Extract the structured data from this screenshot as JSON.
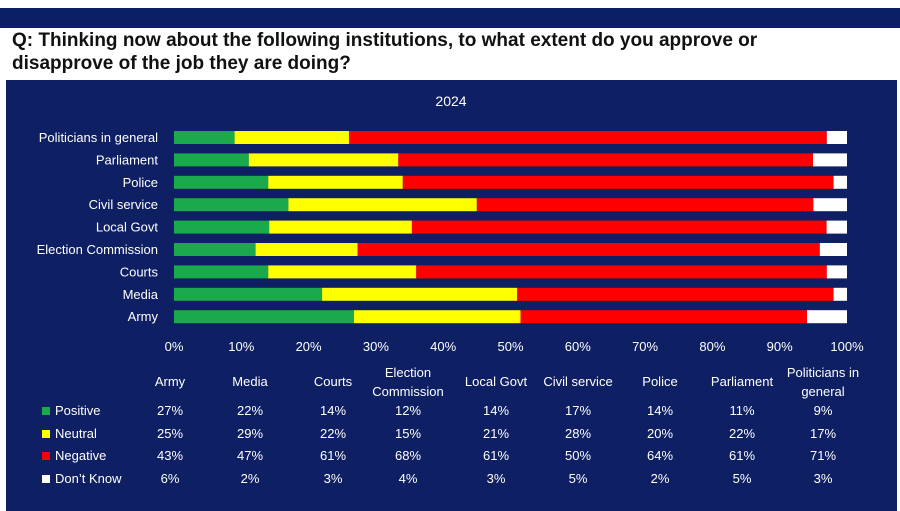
{
  "question": {
    "line1": "Q: Thinking now about the following institutions, to what extent do you approve or",
    "line2": "disapprove of the job they are doing?"
  },
  "colors": {
    "background": "#0e1f63",
    "positive": "#1aaa4c",
    "neutral": "#ffff00",
    "negative": "#ff0000",
    "dont_know": "#ffffff"
  },
  "chart_data": {
    "type": "bar",
    "orientation": "horizontal-stacked-100",
    "title": "2024",
    "xlim": [
      0,
      100
    ],
    "x_ticks": [
      "0%",
      "10%",
      "20%",
      "30%",
      "40%",
      "50%",
      "60%",
      "70%",
      "80%",
      "90%",
      "100%"
    ],
    "categories": [
      "Politicians in general",
      "Parliament",
      "Police",
      "Civil service",
      "Local Govt",
      "Election Commission",
      "Courts",
      "Media",
      "Army"
    ],
    "series": [
      {
        "name": "Positive",
        "values": [
          9,
          11,
          14,
          17,
          14,
          12,
          14,
          22,
          27
        ]
      },
      {
        "name": "Neutral",
        "values": [
          17,
          22,
          20,
          28,
          21,
          15,
          22,
          29,
          25
        ]
      },
      {
        "name": "Negative",
        "values": [
          71,
          61,
          64,
          50,
          61,
          68,
          61,
          47,
          43
        ]
      },
      {
        "name": "Don’t Know",
        "values": [
          3,
          5,
          2,
          5,
          3,
          4,
          3,
          2,
          6
        ]
      }
    ],
    "legend": "table-below"
  },
  "table": {
    "columns": [
      {
        "l1": "Army"
      },
      {
        "l1": "Media"
      },
      {
        "l1": "Courts"
      },
      {
        "l1": "Election",
        "l2": "Commission"
      },
      {
        "l1": "Local Govt"
      },
      {
        "l1": "Civil service"
      },
      {
        "l1": "Police"
      },
      {
        "l1": "Parliament"
      },
      {
        "l1": "Politicians in",
        "l2": "general"
      }
    ],
    "rows": [
      {
        "label": "Positive",
        "values": [
          "27%",
          "22%",
          "14%",
          "12%",
          "14%",
          "17%",
          "14%",
          "11%",
          "9%"
        ]
      },
      {
        "label": "Neutral",
        "values": [
          "25%",
          "29%",
          "22%",
          "15%",
          "21%",
          "28%",
          "20%",
          "22%",
          "17%"
        ]
      },
      {
        "label": "Negative",
        "values": [
          "43%",
          "47%",
          "61%",
          "68%",
          "61%",
          "50%",
          "64%",
          "61%",
          "71%"
        ]
      },
      {
        "label": "Don’t Know",
        "values": [
          "6%",
          "2%",
          "3%",
          "4%",
          "3%",
          "5%",
          "2%",
          "5%",
          "3%"
        ]
      }
    ]
  }
}
